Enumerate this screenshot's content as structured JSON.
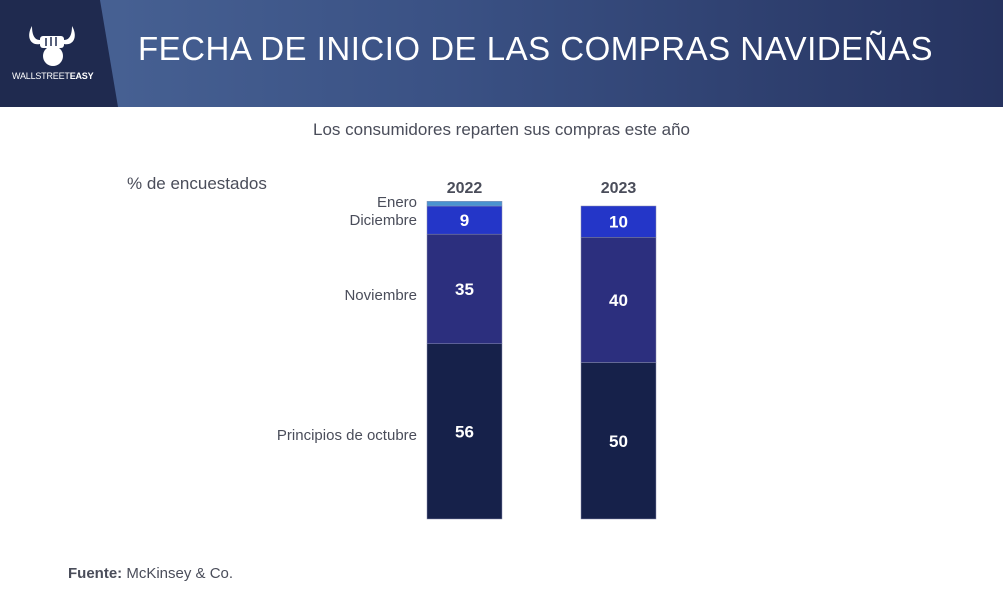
{
  "header": {
    "title": "FECHA DE INICIO DE LAS COMPRAS NAVIDEÑAS",
    "logo_text": "WALLSTREETEASY",
    "logo_icon": "bull-fist-icon"
  },
  "chart_data": {
    "type": "bar",
    "stacked": true,
    "subtitle": "Los consumidores reparten sus compras este año",
    "ylabel": "% de encuestados",
    "categories": [
      "2022",
      "2023"
    ],
    "series": [
      {
        "name": "Principios de octubre",
        "values": [
          56,
          50
        ],
        "labels": [
          "56",
          "50"
        ],
        "color": "#16214a"
      },
      {
        "name": "Noviembre",
        "values": [
          35,
          40
        ],
        "labels": [
          "35",
          "40"
        ],
        "color": "#2c2f7e"
      },
      {
        "name": "Diciembre",
        "values": [
          9,
          10
        ],
        "labels": [
          "9",
          "10"
        ],
        "color": "#2436c8"
      },
      {
        "name": "Enero",
        "values": [
          1.5,
          0
        ],
        "labels": [
          "",
          ""
        ],
        "color": "#4a93d0"
      }
    ]
  },
  "footer": {
    "source_label": "Fuente:",
    "source_value": "McKinsey & Co."
  }
}
